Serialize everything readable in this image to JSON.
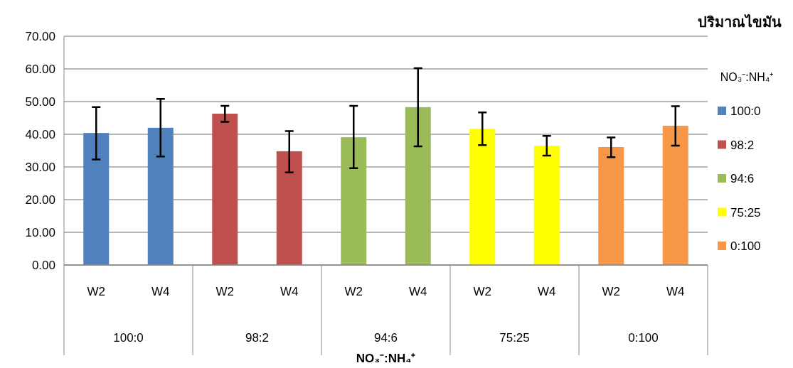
{
  "chart_data": {
    "type": "bar",
    "title": "ปริมาณไขมัน",
    "xlabel": "NO₃⁻:NH₄⁺",
    "legend_title": "NO₃⁻:NH₄⁺",
    "categories": [
      "W2",
      "W4",
      "W2",
      "W4",
      "W2",
      "W4",
      "W2",
      "W4",
      "W2",
      "W4"
    ],
    "series": [
      {
        "name": "100:0",
        "color": "#4f81bd",
        "values": [
          40.4,
          42.0,
          null,
          null,
          null,
          null,
          null,
          null,
          null,
          null
        ],
        "errors": [
          [
            32.3,
            48.3
          ],
          [
            33.2,
            50.8
          ],
          null,
          null,
          null,
          null,
          null,
          null,
          null,
          null
        ]
      },
      {
        "name": "98:2",
        "color": "#c0504d",
        "values": [
          null,
          null,
          46.3,
          34.8,
          null,
          null,
          null,
          null,
          null,
          null
        ],
        "errors": [
          null,
          null,
          [
            43.8,
            48.7
          ],
          [
            28.3,
            41.0
          ],
          null,
          null,
          null,
          null,
          null,
          null
        ]
      },
      {
        "name": "94:6",
        "color": "#9bbb59",
        "values": [
          null,
          null,
          null,
          null,
          39.1,
          48.3,
          null,
          null,
          null,
          null
        ],
        "errors": [
          null,
          null,
          null,
          null,
          [
            29.6,
            48.7
          ],
          [
            36.3,
            60.2
          ],
          null,
          null,
          null,
          null
        ]
      },
      {
        "name": "75:25",
        "color": "#ffff00",
        "values": [
          null,
          null,
          null,
          null,
          null,
          null,
          41.7,
          36.5,
          null,
          null
        ],
        "errors": [
          null,
          null,
          null,
          null,
          null,
          null,
          [
            36.7,
            46.7
          ],
          [
            33.5,
            39.5
          ],
          null,
          null
        ]
      },
      {
        "name": "0:100",
        "color": "#f79646",
        "values": [
          null,
          null,
          null,
          null,
          null,
          null,
          null,
          null,
          36.1,
          42.6
        ],
        "errors": [
          null,
          null,
          null,
          null,
          null,
          null,
          null,
          null,
          [
            33.0,
            39.0
          ],
          [
            36.5,
            48.6
          ]
        ]
      }
    ],
    "ylim": [
      0,
      70
    ],
    "yticks": [
      {
        "value": 0,
        "label": "0.00"
      },
      {
        "value": 10,
        "label": "10.00"
      },
      {
        "value": 20,
        "label": "20.00"
      },
      {
        "value": 30,
        "label": "30.00"
      },
      {
        "value": 40,
        "label": "40.00"
      },
      {
        "value": 50,
        "label": "50.00"
      },
      {
        "value": 60,
        "label": "60.00"
      },
      {
        "value": 70,
        "label": "70.00"
      }
    ],
    "grid": "y",
    "legend": "right"
  }
}
